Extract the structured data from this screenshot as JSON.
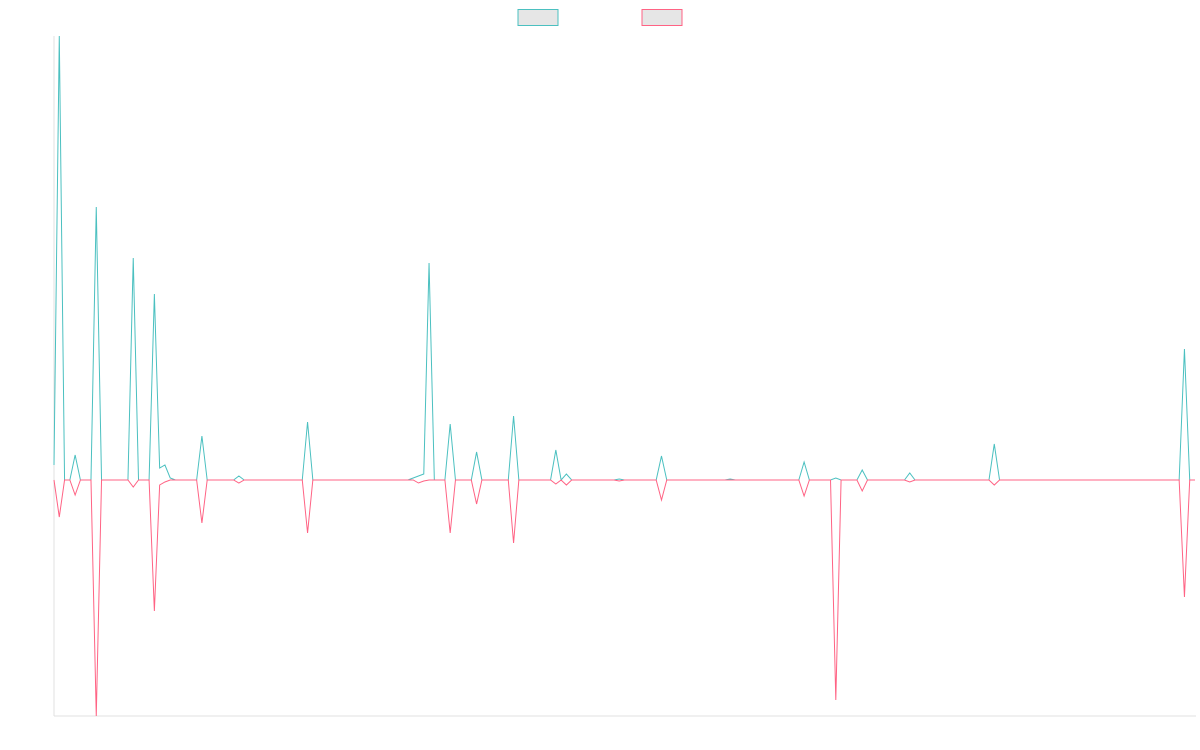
{
  "chart_data": {
    "type": "line",
    "ylim": [
      -236,
      444
    ],
    "legend": "top",
    "grid": false,
    "series": [
      {
        "color": "#4bc0c0",
        "values": [
          15,
          444,
          0,
          0,
          25,
          0,
          0,
          0,
          273,
          0,
          0,
          0,
          0,
          0,
          0,
          222,
          0,
          0,
          0,
          186,
          12,
          15,
          2,
          0,
          0,
          0,
          0,
          0,
          44,
          0,
          0,
          0,
          0,
          0,
          0,
          4,
          0,
          0,
          0,
          0,
          0,
          0,
          0,
          0,
          0,
          0,
          0,
          0,
          58,
          0,
          0,
          0,
          0,
          0,
          0,
          0,
          0,
          0,
          0,
          0,
          0,
          0,
          0,
          0,
          0,
          0,
          0,
          0,
          2,
          4,
          6,
          217,
          0,
          0,
          0,
          56,
          0,
          0,
          0,
          0,
          28,
          0,
          0,
          0,
          0,
          0,
          0,
          64,
          0,
          0,
          0,
          0,
          0,
          0,
          0,
          30,
          0,
          6,
          0,
          0,
          0,
          0,
          0,
          0,
          0,
          0,
          0,
          1,
          0,
          0,
          0,
          0,
          0,
          0,
          0,
          24,
          0,
          0,
          0,
          0,
          0,
          0,
          0,
          0,
          0,
          0,
          0,
          0,
          1,
          0,
          0,
          0,
          0,
          0,
          0,
          0,
          0,
          0,
          0,
          0,
          0,
          0,
          18,
          0,
          0,
          0,
          0,
          0,
          2,
          0,
          0,
          0,
          0,
          10,
          0,
          0,
          0,
          0,
          0,
          0,
          0,
          0,
          7,
          0,
          0,
          0,
          0,
          0,
          0,
          0,
          0,
          0,
          0,
          0,
          0,
          0,
          0,
          0,
          36,
          0,
          0,
          0,
          0,
          0,
          0,
          0,
          0,
          0,
          0,
          0,
          0,
          0,
          0,
          0,
          0,
          0,
          0,
          0,
          0,
          0,
          0,
          0,
          0,
          0,
          0,
          0,
          0,
          0,
          0,
          0,
          0,
          0,
          0,
          0,
          131,
          0,
          0
        ]
      },
      {
        "color": "#ff6384",
        "values": [
          0,
          -37,
          0,
          0,
          -15,
          0,
          0,
          0,
          -236,
          0,
          0,
          0,
          0,
          0,
          0,
          -7,
          0,
          0,
          0,
          -131,
          -5,
          -2,
          0,
          0,
          0,
          0,
          0,
          0,
          -43,
          0,
          0,
          0,
          0,
          0,
          0,
          -3,
          0,
          0,
          0,
          0,
          0,
          0,
          0,
          0,
          0,
          0,
          0,
          0,
          -53,
          0,
          0,
          0,
          0,
          0,
          0,
          0,
          0,
          0,
          0,
          0,
          0,
          0,
          0,
          0,
          0,
          0,
          0,
          0,
          0,
          -3,
          -1,
          0,
          0,
          0,
          0,
          -53,
          0,
          0,
          0,
          0,
          -24,
          0,
          0,
          0,
          0,
          0,
          0,
          -63,
          0,
          0,
          0,
          0,
          0,
          0,
          0,
          -4,
          0,
          -5,
          0,
          0,
          0,
          0,
          0,
          0,
          0,
          0,
          0,
          -1,
          0,
          0,
          0,
          0,
          0,
          0,
          0,
          -20,
          0,
          0,
          0,
          0,
          0,
          0,
          0,
          0,
          0,
          0,
          0,
          0,
          0,
          0,
          0,
          0,
          0,
          0,
          0,
          0,
          0,
          0,
          0,
          0,
          0,
          0,
          -16,
          0,
          0,
          0,
          0,
          0,
          -220,
          0,
          0,
          0,
          0,
          -11,
          0,
          0,
          0,
          0,
          0,
          0,
          0,
          0,
          -2,
          0,
          0,
          0,
          0,
          0,
          0,
          0,
          0,
          0,
          0,
          0,
          0,
          0,
          0,
          0,
          -5,
          0,
          0,
          0,
          0,
          0,
          0,
          0,
          0,
          0,
          0,
          0,
          0,
          0,
          0,
          0,
          0,
          0,
          0,
          0,
          0,
          0,
          0,
          0,
          0,
          0,
          0,
          0,
          0,
          0,
          0,
          0,
          0,
          0,
          0,
          0,
          -117,
          0,
          0
        ]
      }
    ]
  }
}
